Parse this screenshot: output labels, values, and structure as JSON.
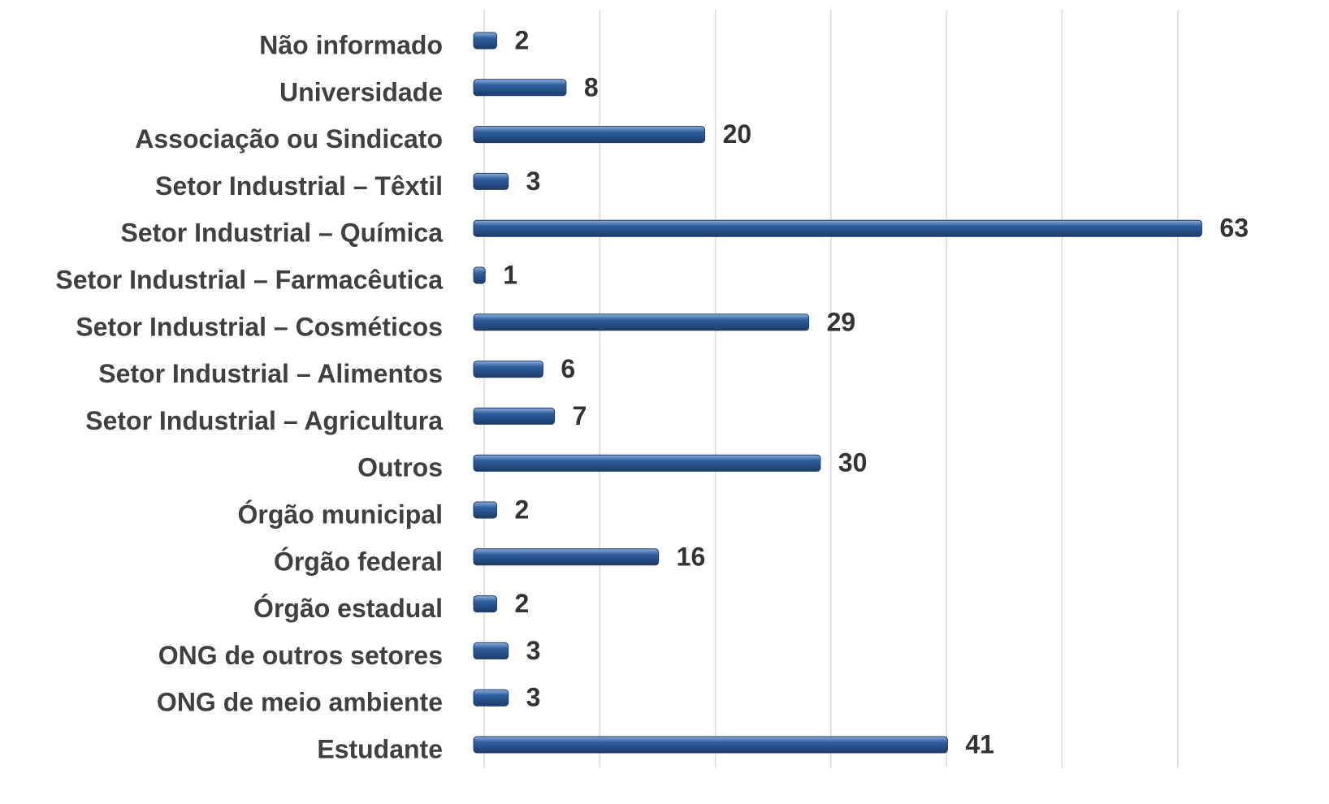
{
  "chart_data": {
    "type": "bar",
    "orientation": "horizontal",
    "categories": [
      "Não informado",
      "Universidade",
      "Associação ou Sindicato",
      "Setor Industrial – Têxtil",
      "Setor Industrial – Química",
      "Setor Industrial – Farmacêutica",
      "Setor Industrial – Cosméticos",
      "Setor Industrial – Alimentos",
      "Setor Industrial – Agricultura",
      "Outros",
      "Órgão municipal",
      "Órgão federal",
      "Órgão estadual",
      "ONG de outros setores",
      "ONG de meio ambiente",
      "Estudante"
    ],
    "values": [
      2,
      8,
      20,
      3,
      63,
      1,
      29,
      6,
      7,
      30,
      2,
      16,
      2,
      3,
      3,
      41
    ],
    "color": "#2f5e9e",
    "xlim": [
      0,
      70
    ],
    "xticks": [
      0,
      10,
      20,
      30,
      40,
      50,
      60
    ],
    "grid": true
  }
}
